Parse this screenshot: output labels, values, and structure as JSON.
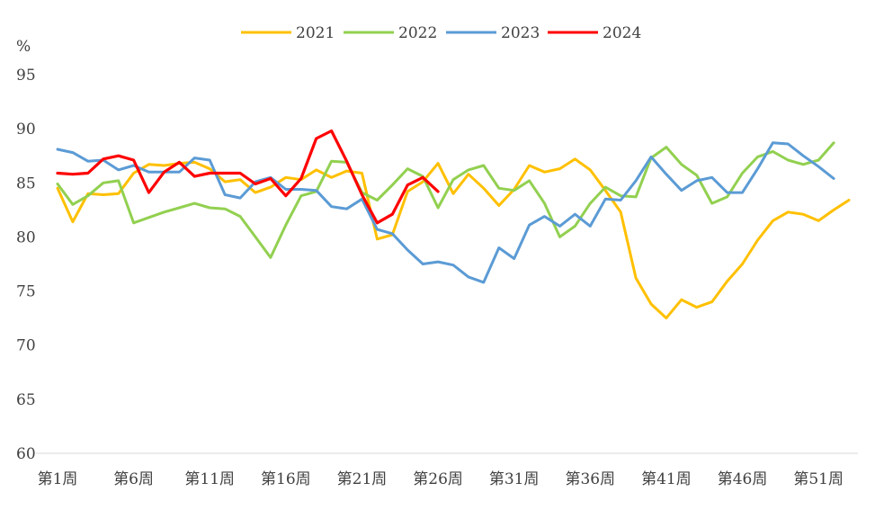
{
  "chart_data": {
    "type": "line",
    "unit": "%",
    "ylim": [
      60,
      95
    ],
    "yticks": [
      60,
      65,
      70,
      75,
      80,
      85,
      90,
      95
    ],
    "xtick_labels": [
      "第1周",
      "第6周",
      "第11周",
      "第16周",
      "第21周",
      "第26周",
      "第31周",
      "第36周",
      "第41周",
      "第46周",
      "第51周"
    ],
    "xtick_weeks": [
      1,
      6,
      11,
      16,
      21,
      26,
      31,
      36,
      41,
      46,
      51
    ],
    "grid": false,
    "legend": "top",
    "series": [
      {
        "name": "2021",
        "color": "#FFC000",
        "values": [
          84.5,
          81.4,
          84.0,
          83.9,
          84.0,
          85.9,
          86.7,
          86.6,
          86.8,
          86.9,
          86.3,
          85.1,
          85.3,
          84.1,
          84.6,
          85.5,
          85.3,
          86.2,
          85.5,
          86.1,
          85.9,
          79.8,
          80.2,
          84.2,
          85.1,
          86.8,
          84.0,
          85.8,
          84.5,
          82.9,
          84.4,
          86.6,
          86.0,
          86.3,
          87.2,
          86.2,
          84.3,
          82.3,
          76.2,
          73.8,
          72.5,
          74.2,
          73.5,
          74.0,
          75.9,
          77.5,
          79.7,
          81.5,
          82.3,
          82.1,
          81.5,
          82.5,
          83.4
        ]
      },
      {
        "name": "2022",
        "color": "#92D050",
        "values": [
          84.9,
          83.0,
          83.8,
          85.0,
          85.2,
          81.3,
          81.8,
          82.3,
          82.7,
          83.1,
          82.7,
          82.6,
          81.9,
          80.0,
          78.1,
          81.1,
          83.8,
          84.2,
          87.0,
          86.9,
          84.1,
          83.4,
          84.8,
          86.3,
          85.6,
          82.7,
          85.3,
          86.2,
          86.6,
          84.5,
          84.3,
          85.2,
          83.1,
          80.0,
          81.0,
          83.1,
          84.6,
          83.8,
          83.7,
          87.3,
          88.3,
          86.7,
          85.7,
          83.1,
          83.7,
          85.9,
          87.4,
          87.9,
          87.1,
          86.7,
          87.1,
          88.7
        ]
      },
      {
        "name": "2023",
        "color": "#5B9BD5",
        "values": [
          88.1,
          87.8,
          87.0,
          87.1,
          86.2,
          86.6,
          86.0,
          86.0,
          86.0,
          87.3,
          87.1,
          83.9,
          83.6,
          85.1,
          85.5,
          84.4,
          84.4,
          84.3,
          82.8,
          82.6,
          83.5,
          80.7,
          80.3,
          78.8,
          77.5,
          77.7,
          77.4,
          76.3,
          75.8,
          79.0,
          78.0,
          81.1,
          81.9,
          81.0,
          82.1,
          81.0,
          83.5,
          83.4,
          85.2,
          87.4,
          85.8,
          84.3,
          85.2,
          85.5,
          84.1,
          84.1,
          86.3,
          88.7,
          88.6,
          87.5,
          86.5,
          85.4
        ]
      },
      {
        "name": "2024",
        "color": "#FF0000",
        "values": [
          85.9,
          85.8,
          85.9,
          87.2,
          87.5,
          87.1,
          84.1,
          86.0,
          86.9,
          85.6,
          85.9,
          85.9,
          85.9,
          84.9,
          85.4,
          83.8,
          85.4,
          89.1,
          89.8,
          87.0,
          83.9,
          81.3,
          82.1,
          84.8,
          85.5,
          84.2
        ]
      }
    ]
  }
}
